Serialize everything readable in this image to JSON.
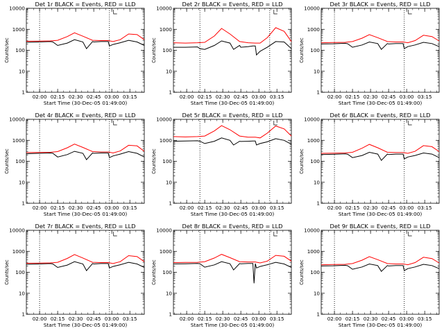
{
  "layout_info": {
    "grid": "3x3",
    "page_bg": "#ffffff"
  },
  "chart_data": [
    {
      "type": "line",
      "title": "Det 1r BLACK = Events, RED = LLD",
      "xlabel": "Start Time (30-Dec-05 01:49:00)",
      "ylabel": "Counts/sec",
      "y_scale": "log",
      "ylim": [
        1,
        10000
      ],
      "ytick_labels": [
        "1",
        "10",
        "100",
        "1000",
        "10000"
      ],
      "xtick_labels": [
        "02:00",
        "02:15",
        "02:30",
        "02:45",
        "03:00",
        "03:15"
      ],
      "xtick_minutes": [
        11,
        26,
        41,
        56,
        71,
        86
      ],
      "xlim_minutes": [
        0,
        98
      ],
      "vlines_minutes": [
        11,
        69
      ],
      "series": [
        {
          "name": "Events",
          "color": "#000000",
          "x": [
            0,
            10,
            20,
            22,
            26,
            34,
            40,
            47,
            50,
            55,
            56,
            62,
            66,
            68,
            69,
            72,
            78,
            85,
            92,
            98
          ],
          "y": [
            240,
            250,
            260,
            250,
            170,
            220,
            320,
            250,
            120,
            260,
            250,
            260,
            260,
            260,
            160,
            190,
            230,
            300,
            250,
            170
          ]
        },
        {
          "name": "LLD",
          "color": "#ff0000",
          "x": [
            0,
            10,
            20,
            26,
            34,
            40,
            47,
            55,
            62,
            68,
            72,
            78,
            85,
            92,
            98
          ],
          "y": [
            270,
            275,
            280,
            300,
            450,
            680,
            470,
            300,
            290,
            290,
            260,
            320,
            600,
            560,
            320
          ]
        }
      ]
    },
    {
      "type": "line",
      "title": "Det 2r BLACK = Events, RED = LLD",
      "xlabel": "Start Time (30-Dec-05 01:49:00)",
      "ylabel": "Counts/sec",
      "y_scale": "log",
      "ylim": [
        1,
        10000
      ],
      "ytick_labels": [
        "1",
        "10",
        "100",
        "1000",
        "10000"
      ],
      "xtick_labels": [
        "02:00",
        "02:15",
        "02:30",
        "02:45",
        "03:00",
        "03:15"
      ],
      "xtick_minutes": [
        11,
        26,
        41,
        56,
        71,
        86
      ],
      "xlim_minutes": [
        0,
        98
      ],
      "vlines_minutes": [
        22,
        80
      ],
      "series": [
        {
          "name": "Events",
          "color": "#000000",
          "x": [
            0,
            10,
            20,
            22,
            26,
            34,
            40,
            47,
            50,
            55,
            56,
            62,
            66,
            68,
            69,
            72,
            78,
            85,
            92,
            98
          ],
          "y": [
            140,
            140,
            145,
            120,
            110,
            170,
            280,
            220,
            110,
            170,
            140,
            150,
            160,
            160,
            60,
            90,
            140,
            260,
            250,
            120
          ]
        },
        {
          "name": "LLD",
          "color": "#ff0000",
          "x": [
            0,
            10,
            20,
            26,
            34,
            40,
            47,
            55,
            62,
            68,
            72,
            78,
            85,
            92,
            98
          ],
          "y": [
            230,
            220,
            230,
            240,
            480,
            1100,
            600,
            260,
            230,
            220,
            220,
            400,
            1200,
            800,
            260
          ]
        }
      ]
    },
    {
      "type": "line",
      "title": "Det 3r BLACK = Events, RED = LLD",
      "xlabel": "Start Time (30-Dec-05 01:49:00)",
      "ylabel": "Counts/sec",
      "y_scale": "log",
      "ylim": [
        1,
        10000
      ],
      "ytick_labels": [
        "1",
        "10",
        "100",
        "1000",
        "10000"
      ],
      "xtick_labels": [
        "02:00",
        "02:15",
        "02:30",
        "02:45",
        "03:00",
        "03:15"
      ],
      "xtick_minutes": [
        11,
        26,
        41,
        56,
        71,
        86
      ],
      "xlim_minutes": [
        0,
        98
      ],
      "vlines_minutes": [
        11,
        69
      ],
      "series": [
        {
          "name": "Events",
          "color": "#000000",
          "x": [
            0,
            10,
            20,
            22,
            26,
            34,
            40,
            47,
            50,
            55,
            56,
            62,
            66,
            68,
            69,
            72,
            78,
            85,
            92,
            98
          ],
          "y": [
            200,
            205,
            215,
            205,
            140,
            180,
            250,
            210,
            110,
            210,
            200,
            210,
            210,
            210,
            120,
            150,
            180,
            240,
            210,
            150
          ]
        },
        {
          "name": "LLD",
          "color": "#ff0000",
          "x": [
            0,
            10,
            20,
            26,
            34,
            40,
            47,
            55,
            62,
            68,
            72,
            78,
            85,
            92,
            98
          ],
          "y": [
            230,
            235,
            240,
            260,
            380,
            560,
            400,
            260,
            250,
            250,
            230,
            290,
            520,
            450,
            280
          ]
        }
      ]
    },
    {
      "type": "line",
      "title": "Det 4r BLACK = Events, RED = LLD",
      "xlabel": "Start Time (30-Dec-05 01:49:00)",
      "ylabel": "Counts/sec",
      "y_scale": "log",
      "ylim": [
        1,
        10000
      ],
      "ytick_labels": [
        "1",
        "10",
        "100",
        "1000",
        "10000"
      ],
      "xtick_labels": [
        "02:00",
        "02:15",
        "02:30",
        "02:45",
        "03:00",
        "03:15"
      ],
      "xtick_minutes": [
        11,
        26,
        41,
        56,
        71,
        86
      ],
      "xlim_minutes": [
        0,
        98
      ],
      "vlines_minutes": [
        11,
        69
      ],
      "series": [
        {
          "name": "Events",
          "color": "#000000",
          "x": [
            0,
            10,
            20,
            22,
            26,
            34,
            40,
            47,
            50,
            55,
            56,
            62,
            66,
            68,
            69,
            72,
            78,
            85,
            92,
            98
          ],
          "y": [
            230,
            240,
            250,
            240,
            160,
            210,
            300,
            240,
            120,
            250,
            240,
            250,
            250,
            250,
            150,
            180,
            220,
            290,
            240,
            160
          ]
        },
        {
          "name": "LLD",
          "color": "#ff0000",
          "x": [
            0,
            10,
            20,
            26,
            34,
            40,
            47,
            55,
            62,
            68,
            72,
            78,
            85,
            92,
            98
          ],
          "y": [
            260,
            265,
            270,
            290,
            440,
            660,
            460,
            290,
            280,
            280,
            250,
            310,
            580,
            540,
            300
          ]
        }
      ]
    },
    {
      "type": "line",
      "title": "Det 5r BLACK = Events, RED = LLD",
      "xlabel": "Start Time (30-Dec-05 01:49:00)",
      "ylabel": "Counts/sec",
      "y_scale": "log",
      "ylim": [
        1,
        10000
      ],
      "ytick_labels": [
        "1",
        "10",
        "100",
        "1000",
        "10000"
      ],
      "xtick_labels": [
        "02:00",
        "02:15",
        "02:30",
        "02:45",
        "03:00",
        "03:15"
      ],
      "xtick_minutes": [
        11,
        26,
        41,
        56,
        71,
        86
      ],
      "xlim_minutes": [
        0,
        98
      ],
      "vlines_minutes": [
        22,
        80
      ],
      "series": [
        {
          "name": "Events",
          "color": "#000000",
          "x": [
            0,
            10,
            20,
            22,
            26,
            34,
            40,
            47,
            50,
            55,
            56,
            62,
            66,
            68,
            69,
            72,
            78,
            85,
            92,
            98
          ],
          "y": [
            900,
            920,
            950,
            900,
            700,
            900,
            1300,
            1000,
            600,
            900,
            880,
            900,
            920,
            920,
            600,
            700,
            850,
            1200,
            1000,
            650
          ]
        },
        {
          "name": "LLD",
          "color": "#ff0000",
          "x": [
            0,
            10,
            20,
            26,
            34,
            40,
            47,
            55,
            62,
            68,
            72,
            78,
            85,
            92,
            98
          ],
          "y": [
            1500,
            1450,
            1500,
            1600,
            2800,
            5000,
            3200,
            1600,
            1400,
            1400,
            1300,
            2200,
            4800,
            3500,
            1600
          ]
        }
      ]
    },
    {
      "type": "line",
      "title": "Det 6r BLACK = Events, RED = LLD",
      "xlabel": "Start Time (30-Dec-05 01:49:00)",
      "ylabel": "Counts/sec",
      "y_scale": "log",
      "ylim": [
        1,
        10000
      ],
      "ytick_labels": [
        "1",
        "10",
        "100",
        "1000",
        "10000"
      ],
      "xtick_labels": [
        "02:00",
        "02:15",
        "02:30",
        "02:45",
        "03:00",
        "03:15"
      ],
      "xtick_minutes": [
        11,
        26,
        41,
        56,
        71,
        86
      ],
      "xlim_minutes": [
        0,
        98
      ],
      "vlines_minutes": [
        11,
        69
      ],
      "series": [
        {
          "name": "Events",
          "color": "#000000",
          "x": [
            0,
            10,
            20,
            22,
            26,
            34,
            40,
            47,
            50,
            55,
            56,
            62,
            66,
            68,
            69,
            72,
            78,
            85,
            92,
            98
          ],
          "y": [
            210,
            215,
            225,
            215,
            150,
            190,
            270,
            220,
            110,
            220,
            210,
            220,
            220,
            220,
            130,
            160,
            190,
            250,
            220,
            150
          ]
        },
        {
          "name": "LLD",
          "color": "#ff0000",
          "x": [
            0,
            10,
            20,
            26,
            34,
            40,
            47,
            55,
            62,
            68,
            72,
            78,
            85,
            92,
            98
          ],
          "y": [
            240,
            245,
            250,
            270,
            420,
            640,
            440,
            270,
            260,
            260,
            240,
            300,
            560,
            500,
            290
          ]
        }
      ]
    },
    {
      "type": "line",
      "title": "Det 7r BLACK = Events, RED = LLD",
      "xlabel": "Start Time (30-Dec-05 01:49:00)",
      "ylabel": "Counts/sec",
      "y_scale": "log",
      "ylim": [
        1,
        10000
      ],
      "ytick_labels": [
        "1",
        "10",
        "100",
        "1000",
        "10000"
      ],
      "xtick_labels": [
        "02:00",
        "02:15",
        "02:30",
        "02:45",
        "03:00",
        "03:15"
      ],
      "xtick_minutes": [
        11,
        26,
        41,
        56,
        71,
        86
      ],
      "xlim_minutes": [
        0,
        98
      ],
      "vlines_minutes": [
        11,
        69
      ],
      "series": [
        {
          "name": "Events",
          "color": "#000000",
          "x": [
            0,
            10,
            20,
            22,
            26,
            34,
            40,
            47,
            50,
            55,
            56,
            62,
            66,
            68,
            69,
            72,
            78,
            85,
            92,
            98
          ],
          "y": [
            240,
            250,
            260,
            250,
            170,
            220,
            320,
            250,
            120,
            260,
            250,
            260,
            260,
            260,
            160,
            190,
            230,
            300,
            250,
            170
          ]
        },
        {
          "name": "LLD",
          "color": "#ff0000",
          "x": [
            0,
            10,
            20,
            26,
            34,
            40,
            47,
            55,
            62,
            68,
            72,
            78,
            85,
            92,
            98
          ],
          "y": [
            270,
            275,
            280,
            300,
            460,
            700,
            480,
            300,
            290,
            290,
            260,
            320,
            620,
            560,
            320
          ]
        }
      ]
    },
    {
      "type": "line",
      "title": "Det 8r BLACK = Events, RED = LLD",
      "xlabel": "Start Time (30-Dec-05 01:49:00)",
      "ylabel": "Counts/sec",
      "y_scale": "log",
      "ylim": [
        1,
        10000
      ],
      "ytick_labels": [
        "1",
        "10",
        "100",
        "1000",
        "10000"
      ],
      "xtick_labels": [
        "02:00",
        "02:15",
        "02:30",
        "02:45",
        "03:00",
        "03:15"
      ],
      "xtick_minutes": [
        11,
        26,
        41,
        56,
        71,
        86
      ],
      "xlim_minutes": [
        0,
        98
      ],
      "vlines_minutes": [
        22,
        80
      ],
      "series": [
        {
          "name": "Events",
          "color": "#000000",
          "x": [
            0,
            10,
            20,
            22,
            26,
            34,
            40,
            47,
            50,
            55,
            56,
            62,
            66,
            67,
            68,
            69,
            72,
            78,
            85,
            92,
            98
          ],
          "y": [
            250,
            255,
            265,
            255,
            175,
            225,
            320,
            255,
            130,
            260,
            255,
            265,
            265,
            30,
            260,
            160,
            190,
            230,
            300,
            250,
            170
          ]
        },
        {
          "name": "LLD",
          "color": "#ff0000",
          "x": [
            0,
            10,
            20,
            26,
            34,
            40,
            47,
            55,
            62,
            68,
            72,
            78,
            85,
            92,
            98
          ],
          "y": [
            290,
            295,
            300,
            320,
            480,
            720,
            500,
            320,
            310,
            310,
            280,
            340,
            640,
            580,
            340
          ]
        }
      ]
    },
    {
      "type": "line",
      "title": "Det 9r BLACK = Events, RED = LLD",
      "xlabel": "Start Time (30-Dec-05 01:49:00)",
      "ylabel": "Counts/sec",
      "y_scale": "log",
      "ylim": [
        1,
        10000
      ],
      "ytick_labels": [
        "1",
        "10",
        "100",
        "1000",
        "10000"
      ],
      "xtick_labels": [
        "02:00",
        "02:15",
        "02:30",
        "02:45",
        "03:00",
        "03:15"
      ],
      "xtick_minutes": [
        11,
        26,
        41,
        56,
        71,
        86
      ],
      "xlim_minutes": [
        0,
        98
      ],
      "vlines_minutes": [
        11,
        69
      ],
      "series": [
        {
          "name": "Events",
          "color": "#000000",
          "x": [
            0,
            10,
            20,
            22,
            26,
            34,
            40,
            47,
            50,
            55,
            56,
            62,
            66,
            68,
            69,
            72,
            78,
            85,
            92,
            98
          ],
          "y": [
            200,
            205,
            215,
            205,
            140,
            180,
            250,
            210,
            110,
            210,
            200,
            210,
            210,
            210,
            120,
            150,
            180,
            240,
            210,
            150
          ]
        },
        {
          "name": "LLD",
          "color": "#ff0000",
          "x": [
            0,
            10,
            20,
            26,
            34,
            40,
            47,
            55,
            62,
            68,
            72,
            78,
            85,
            92,
            98
          ],
          "y": [
            230,
            235,
            240,
            260,
            380,
            560,
            400,
            260,
            250,
            250,
            230,
            290,
            520,
            450,
            280
          ]
        }
      ]
    }
  ]
}
